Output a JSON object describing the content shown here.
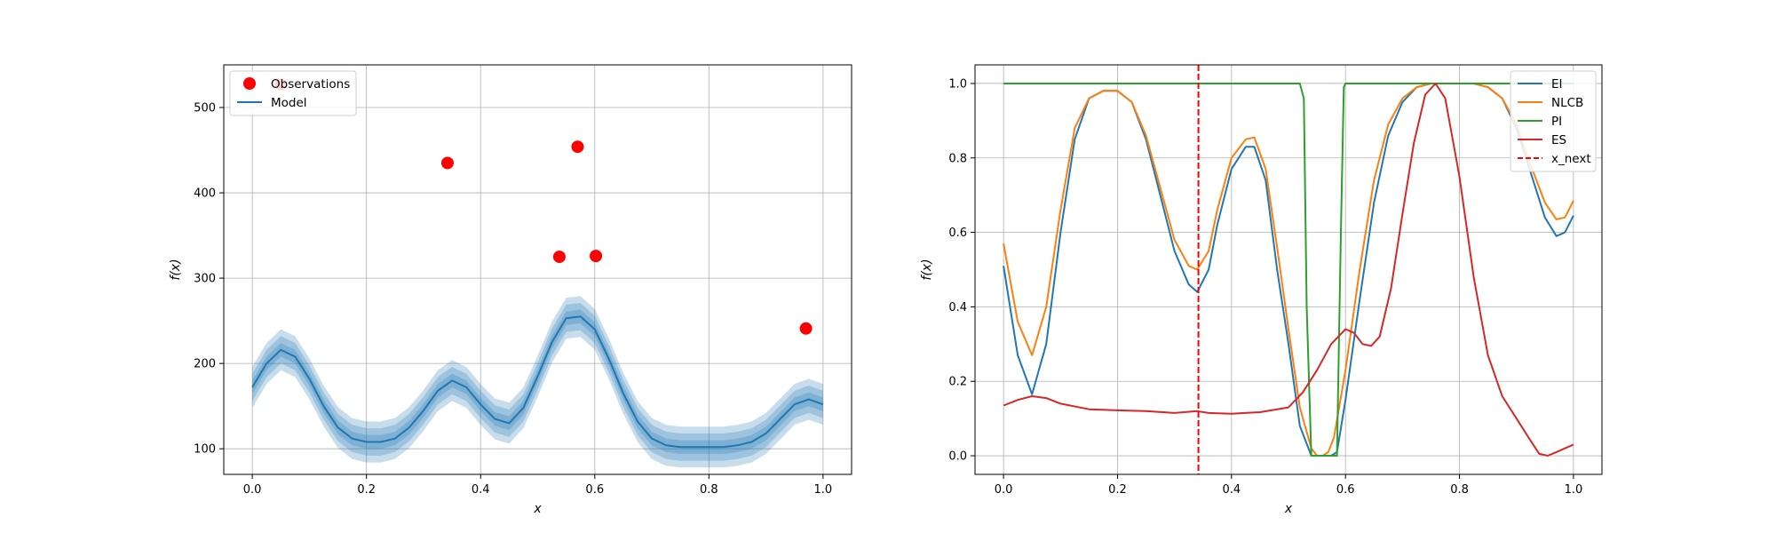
{
  "chart_data": [
    {
      "type": "line",
      "title": "",
      "xlabel": "x",
      "ylabel": "f(x)",
      "xlim": [
        -0.05,
        1.05
      ],
      "ylim": [
        70,
        550
      ],
      "xticks": [
        "0.0",
        "0.2",
        "0.4",
        "0.6",
        "0.8",
        "1.0"
      ],
      "yticks": [
        "100",
        "200",
        "300",
        "400",
        "500"
      ],
      "grid": true,
      "legend_position": "top-left",
      "legend": [
        "Observations",
        "Model"
      ],
      "colors": {
        "observations": "#ff0000",
        "model": "#1f77b4"
      },
      "series": [
        {
          "name": "Observations",
          "kind": "scatter",
          "x": [
            0.05,
            0.342,
            0.538,
            0.57,
            0.602,
            0.97
          ],
          "y": [
            527,
            435,
            325,
            454,
            326,
            241
          ]
        },
        {
          "name": "Model",
          "kind": "line_with_confidence_bands",
          "x": [
            0.0,
            0.025,
            0.05,
            0.075,
            0.1,
            0.125,
            0.15,
            0.175,
            0.2,
            0.225,
            0.25,
            0.275,
            0.3,
            0.325,
            0.35,
            0.375,
            0.4,
            0.425,
            0.45,
            0.475,
            0.5,
            0.525,
            0.55,
            0.575,
            0.6,
            0.625,
            0.65,
            0.675,
            0.7,
            0.725,
            0.75,
            0.775,
            0.8,
            0.825,
            0.85,
            0.875,
            0.9,
            0.925,
            0.95,
            0.975,
            1.0
          ],
          "y": [
            172,
            200,
            216,
            208,
            182,
            150,
            125,
            112,
            108,
            108,
            112,
            125,
            145,
            168,
            180,
            172,
            152,
            135,
            130,
            148,
            185,
            225,
            253,
            255,
            240,
            205,
            165,
            132,
            112,
            104,
            102,
            102,
            102,
            102,
            104,
            108,
            118,
            135,
            152,
            158,
            152
          ],
          "band_widths": [
            8,
            16,
            24
          ]
        }
      ]
    },
    {
      "type": "line",
      "title": "",
      "xlabel": "x",
      "ylabel": "f(x)",
      "xlim": [
        -0.05,
        1.05
      ],
      "ylim": [
        -0.05,
        1.05
      ],
      "xticks": [
        "0.0",
        "0.2",
        "0.4",
        "0.6",
        "0.8",
        "1.0"
      ],
      "yticks": [
        "0.0",
        "0.2",
        "0.4",
        "0.6",
        "0.8",
        "1.0"
      ],
      "grid": true,
      "legend_position": "top-right",
      "legend": [
        "EI",
        "NLCB",
        "PI",
        "ES",
        "x_next"
      ],
      "vline": {
        "name": "x_next",
        "x": 0.342,
        "color": "#ff0000",
        "style": "dashed"
      },
      "series": [
        {
          "name": "EI",
          "color": "#1f77b4",
          "x": [
            0.0,
            0.025,
            0.05,
            0.075,
            0.1,
            0.125,
            0.15,
            0.175,
            0.2,
            0.225,
            0.25,
            0.275,
            0.3,
            0.325,
            0.34,
            0.36,
            0.375,
            0.4,
            0.425,
            0.44,
            0.46,
            0.48,
            0.5,
            0.52,
            0.54,
            0.55,
            0.56,
            0.575,
            0.585,
            0.6,
            0.625,
            0.65,
            0.675,
            0.7,
            0.725,
            0.75,
            0.775,
            0.8,
            0.825,
            0.85,
            0.875,
            0.9,
            0.925,
            0.95,
            0.97,
            0.985,
            1.0
          ],
          "y": [
            0.51,
            0.27,
            0.165,
            0.3,
            0.6,
            0.85,
            0.96,
            0.98,
            0.98,
            0.95,
            0.85,
            0.7,
            0.55,
            0.46,
            0.44,
            0.5,
            0.62,
            0.77,
            0.83,
            0.83,
            0.74,
            0.5,
            0.3,
            0.08,
            0.0,
            0.0,
            0.0,
            0.0,
            0.01,
            0.15,
            0.42,
            0.68,
            0.86,
            0.95,
            0.99,
            1.0,
            1.0,
            1.0,
            1.0,
            0.99,
            0.96,
            0.88,
            0.76,
            0.64,
            0.59,
            0.6,
            0.645
          ]
        },
        {
          "name": "NLCB",
          "color": "#ff7f0e",
          "x": [
            0.0,
            0.025,
            0.05,
            0.075,
            0.1,
            0.125,
            0.15,
            0.175,
            0.2,
            0.225,
            0.25,
            0.275,
            0.3,
            0.325,
            0.34,
            0.36,
            0.375,
            0.4,
            0.425,
            0.44,
            0.46,
            0.48,
            0.5,
            0.52,
            0.54,
            0.55,
            0.56,
            0.57,
            0.58,
            0.6,
            0.625,
            0.65,
            0.675,
            0.7,
            0.725,
            0.75,
            0.775,
            0.8,
            0.825,
            0.85,
            0.875,
            0.9,
            0.925,
            0.95,
            0.97,
            0.985,
            1.0
          ],
          "y": [
            0.57,
            0.36,
            0.27,
            0.4,
            0.66,
            0.88,
            0.96,
            0.98,
            0.98,
            0.95,
            0.86,
            0.72,
            0.58,
            0.51,
            0.5,
            0.55,
            0.66,
            0.8,
            0.85,
            0.855,
            0.77,
            0.56,
            0.34,
            0.13,
            0.02,
            0.0,
            0.0,
            0.01,
            0.05,
            0.23,
            0.5,
            0.74,
            0.89,
            0.96,
            0.99,
            1.0,
            1.0,
            1.0,
            1.0,
            0.99,
            0.96,
            0.89,
            0.78,
            0.68,
            0.635,
            0.64,
            0.685
          ]
        },
        {
          "name": "PI",
          "color": "#2ca02c",
          "x": [
            0.0,
            0.52,
            0.527,
            0.532,
            0.54,
            0.585,
            0.592,
            0.597,
            0.6,
            1.0
          ],
          "y": [
            1.0,
            1.0,
            0.96,
            0.4,
            0.0,
            0.0,
            0.6,
            0.99,
            1.0,
            1.0
          ]
        },
        {
          "name": "ES",
          "color": "#d62728",
          "x": [
            0.0,
            0.025,
            0.05,
            0.075,
            0.1,
            0.15,
            0.2,
            0.25,
            0.3,
            0.34,
            0.36,
            0.4,
            0.45,
            0.5,
            0.525,
            0.55,
            0.575,
            0.6,
            0.615,
            0.63,
            0.645,
            0.66,
            0.68,
            0.7,
            0.72,
            0.74,
            0.758,
            0.775,
            0.8,
            0.825,
            0.85,
            0.875,
            0.9,
            0.925,
            0.94,
            0.955,
            0.97,
            0.985,
            1.0
          ],
          "y": [
            0.135,
            0.15,
            0.16,
            0.155,
            0.14,
            0.125,
            0.122,
            0.12,
            0.115,
            0.12,
            0.115,
            0.113,
            0.117,
            0.13,
            0.17,
            0.23,
            0.3,
            0.34,
            0.33,
            0.3,
            0.295,
            0.32,
            0.45,
            0.65,
            0.84,
            0.97,
            1.0,
            0.96,
            0.75,
            0.48,
            0.27,
            0.16,
            0.1,
            0.04,
            0.005,
            0.0,
            0.01,
            0.02,
            0.03
          ]
        }
      ]
    }
  ]
}
